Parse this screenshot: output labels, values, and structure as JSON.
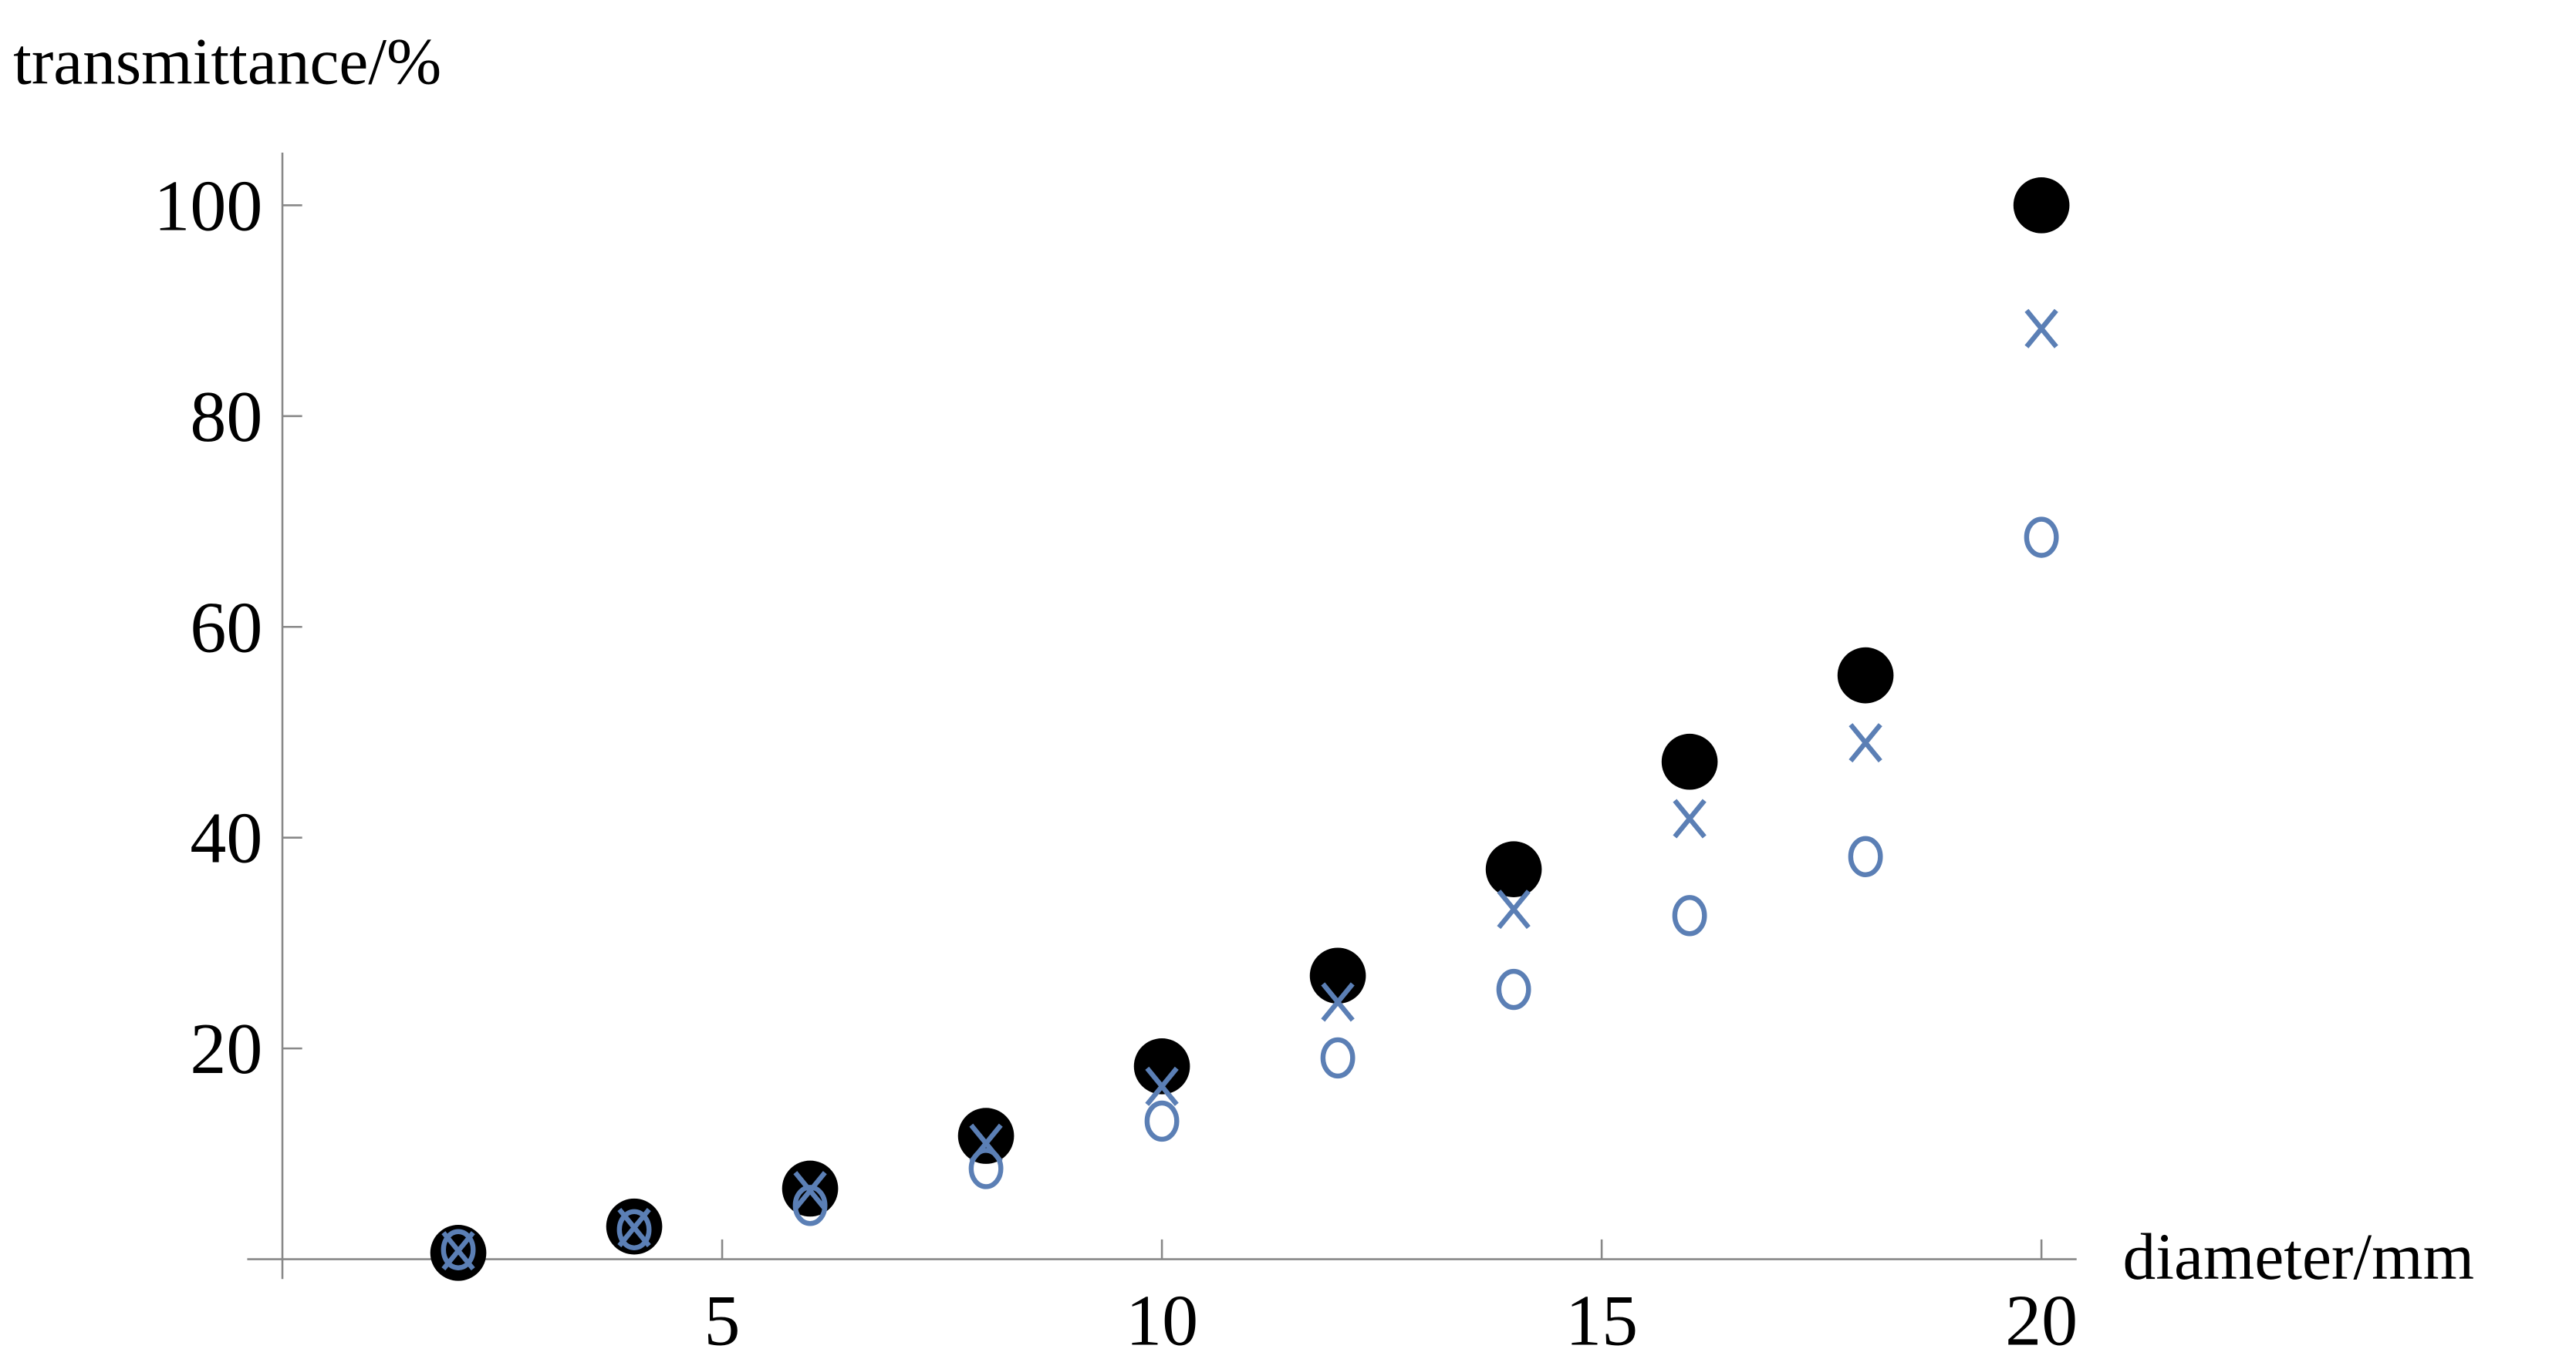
{
  "chart_data": {
    "type": "scatter",
    "xlabel": "diameter/mm",
    "ylabel": "transmittance/%",
    "x": [
      2,
      4,
      6,
      8,
      10,
      12,
      14,
      16,
      18,
      20
    ],
    "series": [
      {
        "color": "#000000",
        "marker": "disc",
        "values": [
          0.6,
          3.1,
          6.7,
          11.7,
          18.3,
          26.9,
          37.0,
          47.2,
          55.4,
          100
        ]
      },
      {
        "color": "#5b7fb5",
        "marker": "x",
        "values": [
          0.8,
          3.0,
          6.5,
          11.0,
          16.4,
          24.4,
          33.2,
          41.8,
          49.0,
          88.3
        ]
      },
      {
        "color": "#5b7fb5",
        "marker": "o",
        "values": [
          0.9,
          2.8,
          5.1,
          8.6,
          13.1,
          19.1,
          25.6,
          32.6,
          38.2,
          68.5
        ]
      }
    ],
    "xlim": [
      -0.4,
      20.4
    ],
    "ylim": [
      0,
      105
    ],
    "xticks": [
      5,
      10,
      15,
      20
    ],
    "yticks": [
      20,
      40,
      60,
      80,
      100
    ]
  }
}
